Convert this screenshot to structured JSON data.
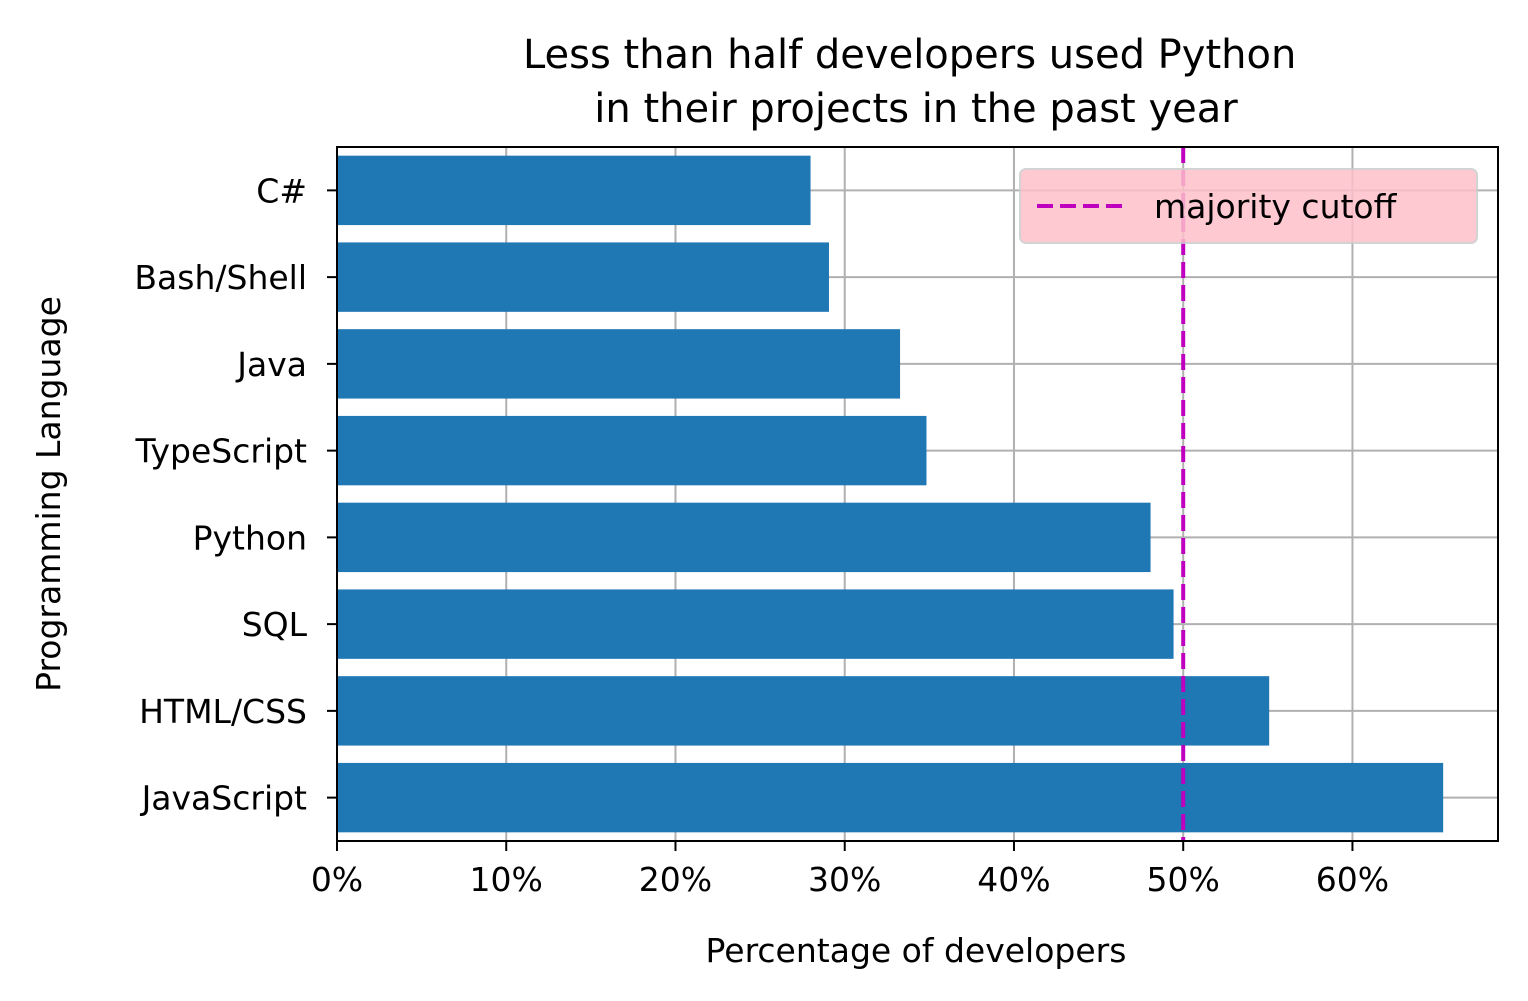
{
  "chart_data": {
    "type": "bar",
    "orientation": "horizontal",
    "title": "Less than half developers used Python\nin their projects in the past year",
    "xlabel": "Percentage of developers",
    "ylabel": "Programming Language",
    "categories": [
      "JavaScript",
      "HTML/CSS",
      "SQL",
      "Python",
      "TypeScript",
      "Java",
      "Bash/Shell",
      "C#"
    ],
    "values": [
      65.36,
      55.08,
      49.43,
      48.07,
      34.83,
      33.27,
      29.07,
      27.98
    ],
    "value_format": "percent",
    "xlim": [
      0,
      68.6
    ],
    "xticks": [
      0,
      10,
      20,
      30,
      40,
      50,
      60
    ],
    "xtick_labels": [
      "0%",
      "10%",
      "20%",
      "30%",
      "40%",
      "50%",
      "60%"
    ],
    "grid": true,
    "bar_color": "#1f77b4",
    "reference_line": {
      "value": 50,
      "label": "majority cutoff",
      "color": "#bf00bf",
      "style": "dashed"
    },
    "legend": {
      "placement": "top-right",
      "background": "#ffc0cb"
    }
  }
}
